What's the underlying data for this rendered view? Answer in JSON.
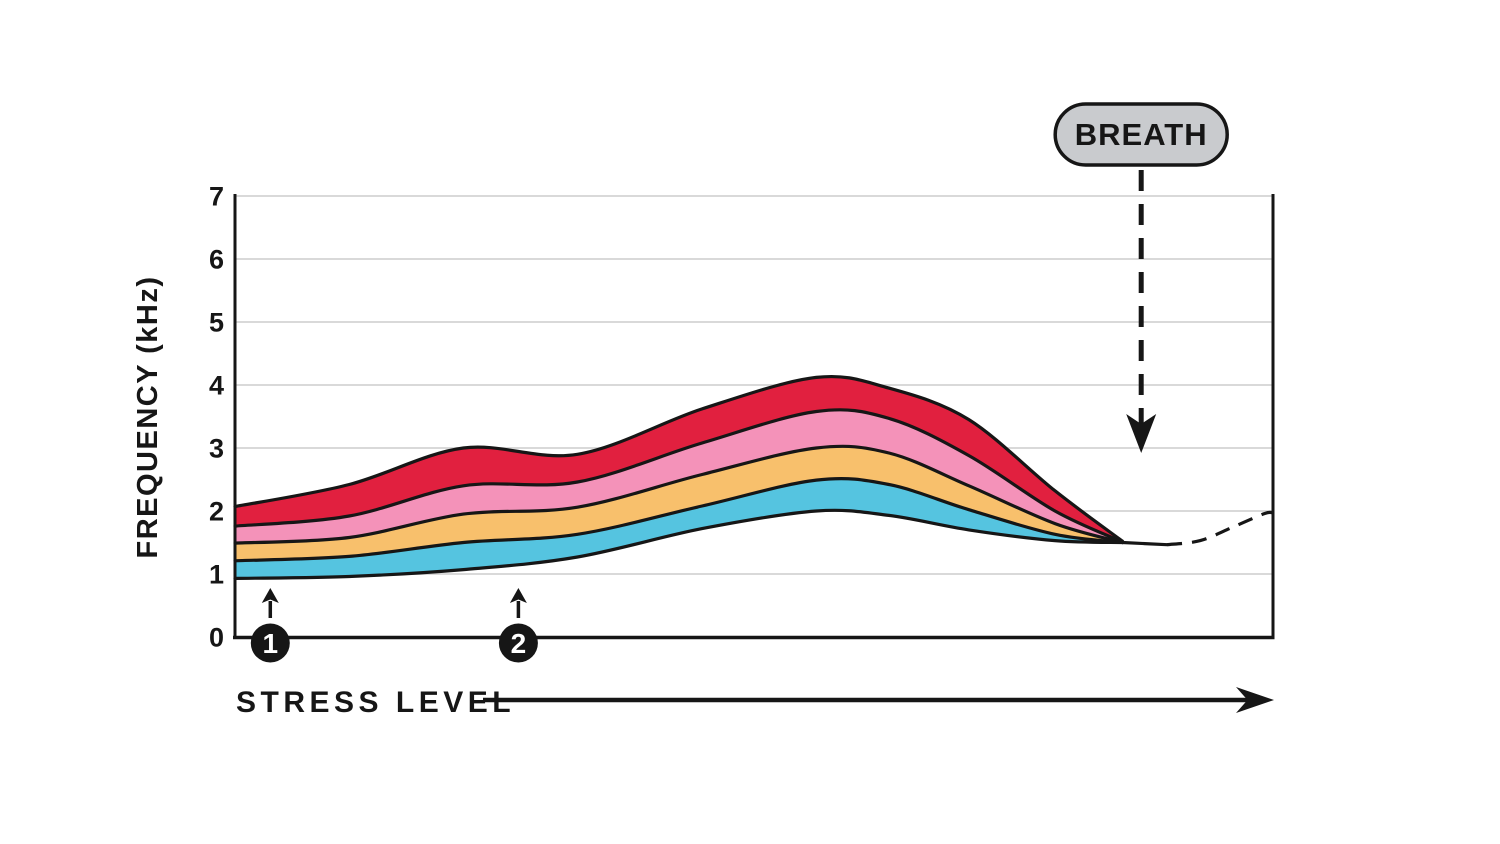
{
  "badge": {
    "label": "BREATH",
    "x": 8.73
  },
  "axes": {
    "y_title": "FREQUENCY (kHz)",
    "x_title": "STRESS LEVEL",
    "y_ticks": [
      0,
      1,
      2,
      3,
      4,
      5,
      6,
      7
    ]
  },
  "markers": [
    {
      "label": "1",
      "x": 0.34
    },
    {
      "label": "2",
      "x": 2.73
    }
  ],
  "colors": {
    "ink": "#161616",
    "grid": "#d9d9d9",
    "badge_fill": "#c9cbce",
    "band_blue": "#55c4e0",
    "band_orange": "#f8c06c",
    "band_pink": "#f492b9",
    "band_red": "#e1203f"
  },
  "chart_data": {
    "type": "area",
    "title": "",
    "xlabel": "STRESS LEVEL",
    "ylabel": "FREQUENCY (kHz)",
    "xlim": [
      0,
      10
    ],
    "ylim": [
      0,
      7
    ],
    "y_ticks": [
      0,
      1,
      2,
      3,
      4,
      5,
      6,
      7
    ],
    "grid": "horizontal",
    "legend": "none",
    "x": [
      0,
      1.1,
      2.2,
      3.3,
      4.5,
      5.6,
      6.3,
      7.07,
      7.9,
      8.55
    ],
    "boundaries": [
      {
        "name": "bottom",
        "values": [
          0.93,
          0.96,
          1.07,
          1.27,
          1.72,
          2.0,
          1.93,
          1.7,
          1.53,
          1.5
        ]
      },
      {
        "name": "blue-top",
        "values": [
          1.21,
          1.28,
          1.5,
          1.63,
          2.08,
          2.49,
          2.42,
          2.02,
          1.63,
          1.5
        ]
      },
      {
        "name": "orange-top",
        "values": [
          1.49,
          1.58,
          1.95,
          2.06,
          2.58,
          3.0,
          2.92,
          2.4,
          1.8,
          1.5
        ]
      },
      {
        "name": "pink-top",
        "values": [
          1.76,
          1.92,
          2.4,
          2.46,
          3.08,
          3.58,
          3.47,
          2.88,
          2.0,
          1.51
        ]
      },
      {
        "name": "red-top",
        "values": [
          2.07,
          2.42,
          3.0,
          2.9,
          3.62,
          4.12,
          3.95,
          3.45,
          2.32,
          1.52
        ]
      }
    ],
    "bands": [
      {
        "name": "blue",
        "color_key": "band_blue",
        "lower": "bottom",
        "upper": "blue-top"
      },
      {
        "name": "orange",
        "color_key": "band_orange",
        "lower": "blue-top",
        "upper": "orange-top"
      },
      {
        "name": "pink",
        "color_key": "band_pink",
        "lower": "orange-top",
        "upper": "pink-top"
      },
      {
        "name": "red",
        "color_key": "band_red",
        "lower": "pink-top",
        "upper": "red-top"
      }
    ],
    "continuation": {
      "solid": [
        [
          8.55,
          1.5
        ],
        [
          8.98,
          1.465
        ]
      ],
      "dashed": [
        [
          8.98,
          1.465
        ],
        [
          9.3,
          1.53
        ],
        [
          9.62,
          1.75
        ],
        [
          9.92,
          1.96
        ],
        [
          10.0,
          1.97
        ]
      ]
    },
    "annotations": {
      "breath_arrow": {
        "label": "BREATH",
        "points_down_to": {
          "x": 8.73,
          "y": 1.5
        }
      },
      "stress_markers": [
        {
          "label": "1",
          "x": 0.34,
          "arrow": "up"
        },
        {
          "label": "2",
          "x": 2.73,
          "arrow": "up"
        }
      ]
    }
  }
}
